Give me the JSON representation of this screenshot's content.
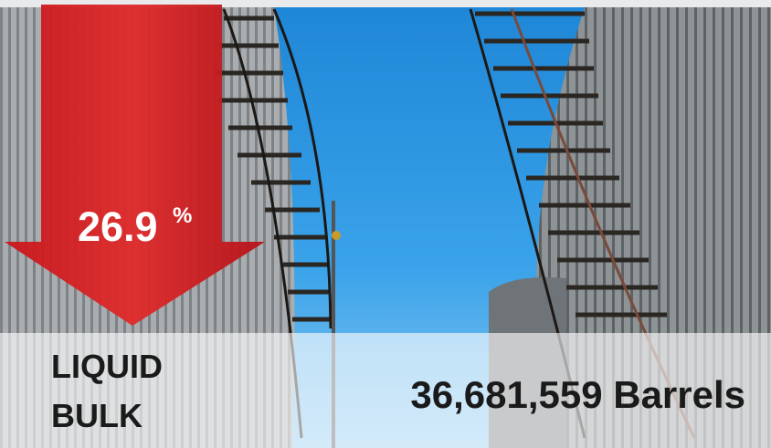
{
  "stat": {
    "value": "26.9",
    "unit": "%"
  },
  "category": {
    "lines": [
      "LIQUID",
      "BULK"
    ]
  },
  "volume": "36,681,559 Barrels"
}
